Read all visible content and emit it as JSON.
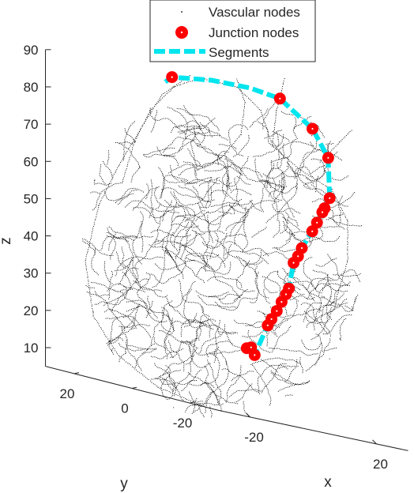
{
  "chart_data": {
    "type": "scatter",
    "title": "",
    "view": "3d",
    "axes": {
      "x": {
        "label": "x",
        "ticks": [
          "-20",
          "20"
        ],
        "range": [
          -30,
          30
        ]
      },
      "y": {
        "label": "y",
        "ticks": [
          "20",
          "0",
          "-20"
        ],
        "range": [
          -30,
          30
        ]
      },
      "z": {
        "label": "z",
        "ticks": [
          "10",
          "20",
          "30",
          "40",
          "50",
          "60",
          "70",
          "80",
          "90"
        ],
        "range": [
          5,
          90
        ]
      }
    },
    "grid": false,
    "legend": {
      "placement": "top-center",
      "entries": [
        "Vascular nodes",
        "Junction nodes",
        "Segments"
      ]
    },
    "series": [
      {
        "name": "Vascular nodes",
        "marker": "point",
        "color": "#000000",
        "note_count_estimate": 6000
      },
      {
        "name": "Junction nodes",
        "marker": "circle",
        "color": "#ff0000",
        "points": [
          {
            "x": -8.2,
            "y": 10.0,
            "z": 90.5
          },
          {
            "x": 20.1,
            "y": 3.6,
            "z": 91.1
          },
          {
            "x": 23.2,
            "y": -4.3,
            "z": 85.1
          },
          {
            "x": 22.7,
            "y": -10.3,
            "z": 78.4
          },
          {
            "x": 19.5,
            "y": -14.3,
            "z": 67.8
          },
          {
            "x": 17.8,
            "y": -14.4,
            "z": 64.8
          },
          {
            "x": 17.2,
            "y": -14.3,
            "z": 63.6
          },
          {
            "x": 15.4,
            "y": -14.4,
            "z": 60.5
          },
          {
            "x": 13.9,
            "y": -14.4,
            "z": 57.9
          },
          {
            "x": 10.7,
            "y": -14.3,
            "z": 52.8
          },
          {
            "x": 9.5,
            "y": -14.3,
            "z": 50.4
          },
          {
            "x": 8.1,
            "y": -14.3,
            "z": 48.4
          },
          {
            "x": 6.6,
            "y": -14.3,
            "z": 41.2
          },
          {
            "x": 5.6,
            "y": -14.4,
            "z": 39.5
          },
          {
            "x": 4.2,
            "y": -14.4,
            "z": 37.2
          },
          {
            "x": 2.6,
            "y": -14.5,
            "z": 34.5
          },
          {
            "x": 1.0,
            "y": -14.4,
            "z": 32.0
          },
          {
            "x": -0.2,
            "y": -14.4,
            "z": 30.1
          },
          {
            "x": -6.7,
            "y": -14.3,
            "z": 22.8
          },
          {
            "x": -6.9,
            "y": -16.0,
            "z": 23.3
          },
          {
            "x": -4.4,
            "y": -14.5,
            "z": 21.4
          }
        ]
      },
      {
        "name": "Segments",
        "line_style": "dashed",
        "color": "#00e5ee"
      }
    ]
  }
}
